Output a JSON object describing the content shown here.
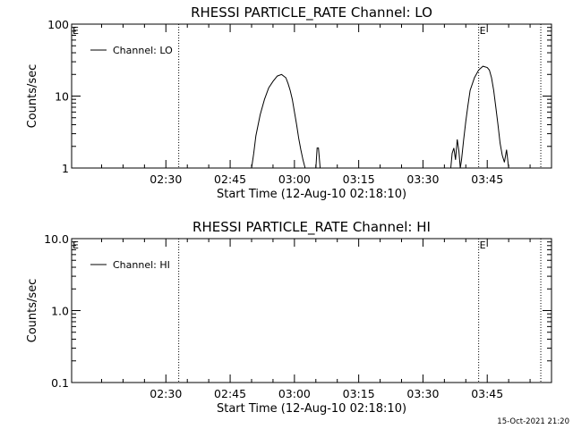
{
  "footer": {
    "timestamp": "15-Oct-2021 21:20"
  },
  "chart_data": [
    {
      "type": "line",
      "title": "RHESSI PARTICLE_RATE Channel: LO",
      "xlabel": "Start Time (12-Aug-10 02:18:10)",
      "ylabel": "Counts/sec",
      "y_scale": "log",
      "ylim": [
        1,
        100
      ],
      "xlim_minutes": [
        -10,
        102
      ],
      "y_ticks": [
        1,
        10,
        100
      ],
      "y_tick_labels": [
        "1",
        "10",
        "100"
      ],
      "x_ticks": [
        12,
        27,
        42,
        57,
        72,
        87
      ],
      "x_tick_labels": [
        "02:30",
        "02:45",
        "03:00",
        "03:15",
        "03:30",
        "03:45"
      ],
      "vlines": [
        15,
        85,
        99.5
      ],
      "event_markers": [
        {
          "label": "E",
          "x": -10
        },
        {
          "label": "E",
          "x": 85
        }
      ],
      "legend": {
        "position": "top-left",
        "entries": [
          "Channel: LO"
        ]
      },
      "series": [
        {
          "name": "Channel: LO",
          "segments": [
            {
              "x": [
                32,
                32.5,
                33,
                34,
                35,
                36,
                37,
                38,
                39,
                40,
                40.5,
                41,
                41.5,
                42,
                42.5,
                43,
                43.5,
                44,
                44.5,
                45,
                45.5
              ],
              "y": [
                1,
                1.6,
                2.8,
                5.5,
                9,
                13,
                16,
                19,
                20,
                18,
                15,
                12,
                9,
                6,
                4,
                2.6,
                1.8,
                1.3,
                1,
                1,
                1
              ]
            },
            {
              "x": [
                47,
                47.3,
                47.6,
                48
              ],
              "y": [
                1,
                1.9,
                1.9,
                1
              ]
            },
            {
              "x": [
                78.5,
                78.8,
                79.2,
                79.6,
                80,
                80.4,
                80.7
              ],
              "y": [
                1,
                1.6,
                1.9,
                1.3,
                2.5,
                1.7,
                1
              ]
            },
            {
              "x": [
                80.7,
                81,
                81.5,
                82,
                82.5,
                83,
                84,
                85,
                86,
                87,
                87.5,
                88,
                88.5,
                89,
                89.5,
                90,
                90.5,
                91,
                91.5,
                92
              ],
              "y": [
                1,
                1.3,
                2.5,
                4.5,
                7.5,
                12,
                18,
                23,
                26,
                25,
                23,
                18,
                12,
                7,
                4,
                2.2,
                1.5,
                1.2,
                1.8,
                1
              ]
            }
          ]
        }
      ]
    },
    {
      "type": "line",
      "title": "RHESSI PARTICLE_RATE Channel: HI",
      "xlabel": "Start Time (12-Aug-10 02:18:10)",
      "ylabel": "Counts/sec",
      "y_scale": "log",
      "ylim": [
        0.1,
        10
      ],
      "xlim_minutes": [
        -10,
        102
      ],
      "y_ticks": [
        0.1,
        1,
        10
      ],
      "y_tick_labels": [
        "0.1",
        "1.0",
        "10.0"
      ],
      "x_ticks": [
        12,
        27,
        42,
        57,
        72,
        87
      ],
      "x_tick_labels": [
        "02:30",
        "02:45",
        "03:00",
        "03:15",
        "03:30",
        "03:45"
      ],
      "vlines": [
        15,
        85,
        99.5
      ],
      "event_markers": [
        {
          "label": "E",
          "x": -10
        },
        {
          "label": "E",
          "x": 85
        }
      ],
      "legend": {
        "position": "top-left",
        "entries": [
          "Channel: HI"
        ]
      },
      "series": [
        {
          "name": "Channel: HI",
          "segments": []
        }
      ]
    }
  ]
}
